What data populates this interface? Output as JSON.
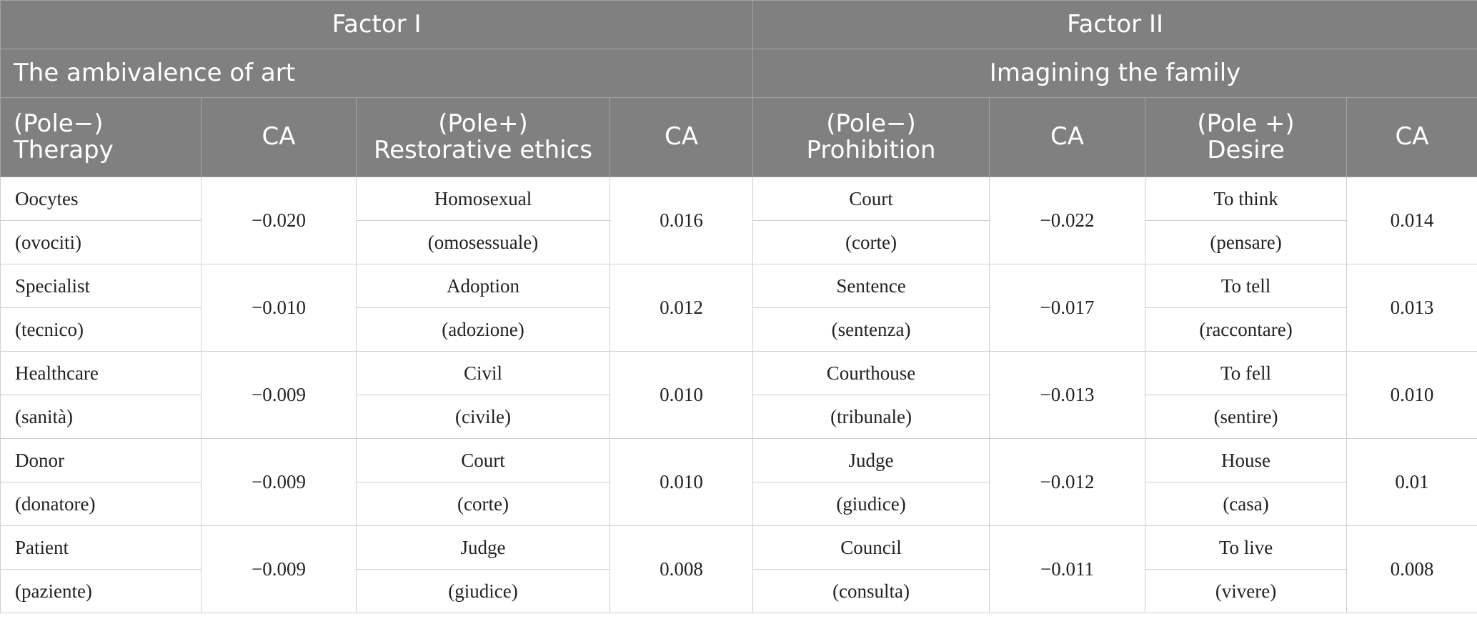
{
  "header": {
    "factor1": "Factor I",
    "factor2": "Factor II",
    "theme1": "The ambivalence of art",
    "theme2": "Imagining the family",
    "columns": {
      "pole_neg_1": "(Pole−)\nTherapy",
      "ca1": "CA",
      "pole_pos_1": "(Pole+)\nRestorative ethics",
      "ca2": "CA",
      "pole_neg_2": "(Pole−)\nProhibition",
      "ca3": "CA",
      "pole_pos_2": "(Pole +)\nDesire",
      "ca4": "CA"
    }
  },
  "rows": [
    {
      "t_en": "Oocytes",
      "t_it": "(ovociti)",
      "t_ca": "−0.020",
      "r_en": "Homosexual",
      "r_it": "(omosessuale)",
      "r_ca": "0.016",
      "p_en": "Court",
      "p_it": "(corte)",
      "p_ca": "−0.022",
      "d_en": "To think",
      "d_it": "(pensare)",
      "d_ca": "0.014"
    },
    {
      "t_en": "Specialist",
      "t_it": "(tecnico)",
      "t_ca": "−0.010",
      "r_en": "Adoption",
      "r_it": "(adozione)",
      "r_ca": "0.012",
      "p_en": "Sentence",
      "p_it": "(sentenza)",
      "p_ca": "−0.017",
      "d_en": "To tell",
      "d_it": "(raccontare)",
      "d_ca": "0.013"
    },
    {
      "t_en": "Healthcare",
      "t_it": "(sanità)",
      "t_ca": "−0.009",
      "r_en": "Civil",
      "r_it": "(civile)",
      "r_ca": "0.010",
      "p_en": "Courthouse",
      "p_it": "(tribunale)",
      "p_ca": "−0.013",
      "d_en": "To fell",
      "d_it": "(sentire)",
      "d_ca": "0.010"
    },
    {
      "t_en": "Donor",
      "t_it": "(donatore)",
      "t_ca": "−0.009",
      "r_en": "Court",
      "r_it": "(corte)",
      "r_ca": "0.010",
      "p_en": "Judge",
      "p_it": "(giudice)",
      "p_ca": "−0.012",
      "d_en": "House",
      "d_it": "(casa)",
      "d_ca": "0.01"
    },
    {
      "t_en": "Patient",
      "t_it": "(paziente)",
      "t_ca": "−0.009",
      "r_en": "Judge",
      "r_it": "(giudice)",
      "r_ca": "0.008",
      "p_en": "Council",
      "p_it": "(consulta)",
      "p_ca": "−0.011",
      "d_en": "To live",
      "d_it": "(vivere)",
      "d_ca": "0.008"
    }
  ],
  "colors": {
    "header_bg": "#808080",
    "header_text": "#ffffff",
    "border": "#cfcfcf"
  }
}
